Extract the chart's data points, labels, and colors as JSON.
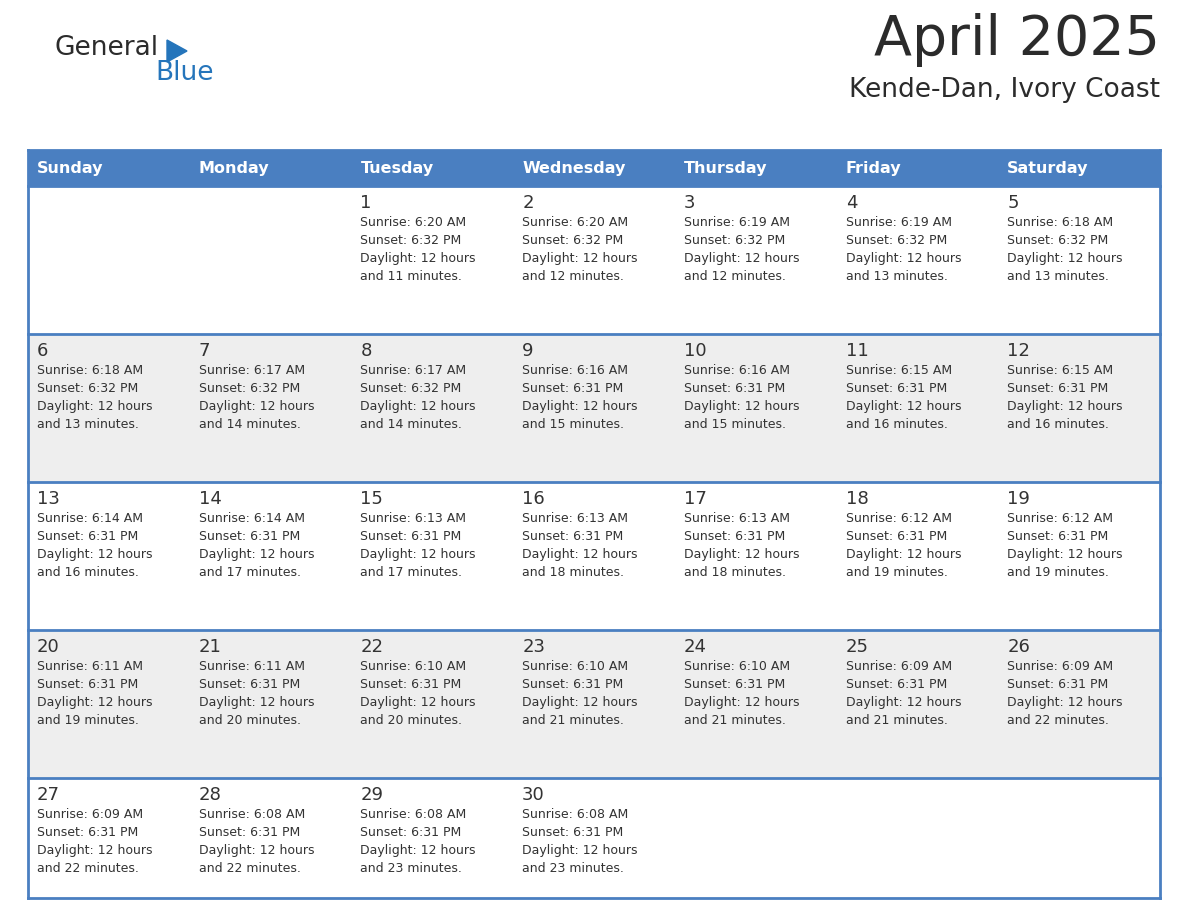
{
  "title": "April 2025",
  "subtitle": "Kende-Dan, Ivory Coast",
  "days_of_week": [
    "Sunday",
    "Monday",
    "Tuesday",
    "Wednesday",
    "Thursday",
    "Friday",
    "Saturday"
  ],
  "header_bg": "#4A7FC1",
  "header_text_color": "#FFFFFF",
  "row_bg_odd": "#FFFFFF",
  "row_bg_even": "#EEEEEE",
  "divider_color": "#4A7FC1",
  "text_color": "#333333",
  "calendar_data": [
    [
      {
        "day": "",
        "sunrise": "",
        "sunset": "",
        "daylight1": "",
        "daylight2": ""
      },
      {
        "day": "",
        "sunrise": "",
        "sunset": "",
        "daylight1": "",
        "daylight2": ""
      },
      {
        "day": "1",
        "sunrise": "Sunrise: 6:20 AM",
        "sunset": "Sunset: 6:32 PM",
        "daylight1": "Daylight: 12 hours",
        "daylight2": "and 11 minutes."
      },
      {
        "day": "2",
        "sunrise": "Sunrise: 6:20 AM",
        "sunset": "Sunset: 6:32 PM",
        "daylight1": "Daylight: 12 hours",
        "daylight2": "and 12 minutes."
      },
      {
        "day": "3",
        "sunrise": "Sunrise: 6:19 AM",
        "sunset": "Sunset: 6:32 PM",
        "daylight1": "Daylight: 12 hours",
        "daylight2": "and 12 minutes."
      },
      {
        "day": "4",
        "sunrise": "Sunrise: 6:19 AM",
        "sunset": "Sunset: 6:32 PM",
        "daylight1": "Daylight: 12 hours",
        "daylight2": "and 13 minutes."
      },
      {
        "day": "5",
        "sunrise": "Sunrise: 6:18 AM",
        "sunset": "Sunset: 6:32 PM",
        "daylight1": "Daylight: 12 hours",
        "daylight2": "and 13 minutes."
      }
    ],
    [
      {
        "day": "6",
        "sunrise": "Sunrise: 6:18 AM",
        "sunset": "Sunset: 6:32 PM",
        "daylight1": "Daylight: 12 hours",
        "daylight2": "and 13 minutes."
      },
      {
        "day": "7",
        "sunrise": "Sunrise: 6:17 AM",
        "sunset": "Sunset: 6:32 PM",
        "daylight1": "Daylight: 12 hours",
        "daylight2": "and 14 minutes."
      },
      {
        "day": "8",
        "sunrise": "Sunrise: 6:17 AM",
        "sunset": "Sunset: 6:32 PM",
        "daylight1": "Daylight: 12 hours",
        "daylight2": "and 14 minutes."
      },
      {
        "day": "9",
        "sunrise": "Sunrise: 6:16 AM",
        "sunset": "Sunset: 6:31 PM",
        "daylight1": "Daylight: 12 hours",
        "daylight2": "and 15 minutes."
      },
      {
        "day": "10",
        "sunrise": "Sunrise: 6:16 AM",
        "sunset": "Sunset: 6:31 PM",
        "daylight1": "Daylight: 12 hours",
        "daylight2": "and 15 minutes."
      },
      {
        "day": "11",
        "sunrise": "Sunrise: 6:15 AM",
        "sunset": "Sunset: 6:31 PM",
        "daylight1": "Daylight: 12 hours",
        "daylight2": "and 16 minutes."
      },
      {
        "day": "12",
        "sunrise": "Sunrise: 6:15 AM",
        "sunset": "Sunset: 6:31 PM",
        "daylight1": "Daylight: 12 hours",
        "daylight2": "and 16 minutes."
      }
    ],
    [
      {
        "day": "13",
        "sunrise": "Sunrise: 6:14 AM",
        "sunset": "Sunset: 6:31 PM",
        "daylight1": "Daylight: 12 hours",
        "daylight2": "and 16 minutes."
      },
      {
        "day": "14",
        "sunrise": "Sunrise: 6:14 AM",
        "sunset": "Sunset: 6:31 PM",
        "daylight1": "Daylight: 12 hours",
        "daylight2": "and 17 minutes."
      },
      {
        "day": "15",
        "sunrise": "Sunrise: 6:13 AM",
        "sunset": "Sunset: 6:31 PM",
        "daylight1": "Daylight: 12 hours",
        "daylight2": "and 17 minutes."
      },
      {
        "day": "16",
        "sunrise": "Sunrise: 6:13 AM",
        "sunset": "Sunset: 6:31 PM",
        "daylight1": "Daylight: 12 hours",
        "daylight2": "and 18 minutes."
      },
      {
        "day": "17",
        "sunrise": "Sunrise: 6:13 AM",
        "sunset": "Sunset: 6:31 PM",
        "daylight1": "Daylight: 12 hours",
        "daylight2": "and 18 minutes."
      },
      {
        "day": "18",
        "sunrise": "Sunrise: 6:12 AM",
        "sunset": "Sunset: 6:31 PM",
        "daylight1": "Daylight: 12 hours",
        "daylight2": "and 19 minutes."
      },
      {
        "day": "19",
        "sunrise": "Sunrise: 6:12 AM",
        "sunset": "Sunset: 6:31 PM",
        "daylight1": "Daylight: 12 hours",
        "daylight2": "and 19 minutes."
      }
    ],
    [
      {
        "day": "20",
        "sunrise": "Sunrise: 6:11 AM",
        "sunset": "Sunset: 6:31 PM",
        "daylight1": "Daylight: 12 hours",
        "daylight2": "and 19 minutes."
      },
      {
        "day": "21",
        "sunrise": "Sunrise: 6:11 AM",
        "sunset": "Sunset: 6:31 PM",
        "daylight1": "Daylight: 12 hours",
        "daylight2": "and 20 minutes."
      },
      {
        "day": "22",
        "sunrise": "Sunrise: 6:10 AM",
        "sunset": "Sunset: 6:31 PM",
        "daylight1": "Daylight: 12 hours",
        "daylight2": "and 20 minutes."
      },
      {
        "day": "23",
        "sunrise": "Sunrise: 6:10 AM",
        "sunset": "Sunset: 6:31 PM",
        "daylight1": "Daylight: 12 hours",
        "daylight2": "and 21 minutes."
      },
      {
        "day": "24",
        "sunrise": "Sunrise: 6:10 AM",
        "sunset": "Sunset: 6:31 PM",
        "daylight1": "Daylight: 12 hours",
        "daylight2": "and 21 minutes."
      },
      {
        "day": "25",
        "sunrise": "Sunrise: 6:09 AM",
        "sunset": "Sunset: 6:31 PM",
        "daylight1": "Daylight: 12 hours",
        "daylight2": "and 21 minutes."
      },
      {
        "day": "26",
        "sunrise": "Sunrise: 6:09 AM",
        "sunset": "Sunset: 6:31 PM",
        "daylight1": "Daylight: 12 hours",
        "daylight2": "and 22 minutes."
      }
    ],
    [
      {
        "day": "27",
        "sunrise": "Sunrise: 6:09 AM",
        "sunset": "Sunset: 6:31 PM",
        "daylight1": "Daylight: 12 hours",
        "daylight2": "and 22 minutes."
      },
      {
        "day": "28",
        "sunrise": "Sunrise: 6:08 AM",
        "sunset": "Sunset: 6:31 PM",
        "daylight1": "Daylight: 12 hours",
        "daylight2": "and 22 minutes."
      },
      {
        "day": "29",
        "sunrise": "Sunrise: 6:08 AM",
        "sunset": "Sunset: 6:31 PM",
        "daylight1": "Daylight: 12 hours",
        "daylight2": "and 23 minutes."
      },
      {
        "day": "30",
        "sunrise": "Sunrise: 6:08 AM",
        "sunset": "Sunset: 6:31 PM",
        "daylight1": "Daylight: 12 hours",
        "daylight2": "and 23 minutes."
      },
      {
        "day": "",
        "sunrise": "",
        "sunset": "",
        "daylight1": "",
        "daylight2": ""
      },
      {
        "day": "",
        "sunrise": "",
        "sunset": "",
        "daylight1": "",
        "daylight2": ""
      },
      {
        "day": "",
        "sunrise": "",
        "sunset": "",
        "daylight1": "",
        "daylight2": ""
      }
    ]
  ],
  "logo_general_color": "#2B2B2B",
  "logo_blue_color": "#2575BB",
  "logo_triangle_color": "#2575BB",
  "title_color": "#2B2B2B",
  "subtitle_color": "#2B2B2B"
}
